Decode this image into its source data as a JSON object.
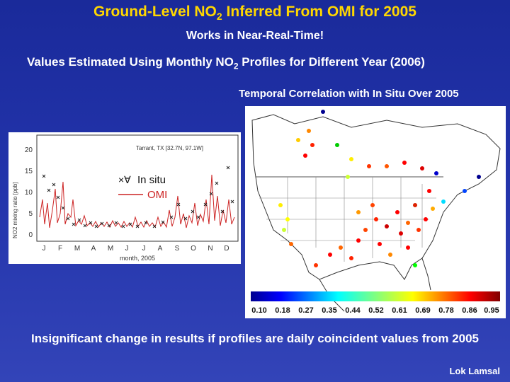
{
  "title": {
    "pre": "Ground-Level NO",
    "sub": "2",
    "post": " Inferred From OMI for 2005"
  },
  "subtitle": "Works in Near-Real-Time!",
  "note": {
    "pre": "Values Estimated Using Monthly NO",
    "sub": "2",
    "post": " Profiles for Different Year (2006)"
  },
  "map": {
    "label": "Temporal Correlation with In Situ Over 2005",
    "colorbar_ticks": [
      "0.10",
      "0.18",
      "0.27",
      "0.35",
      "0.44",
      "0.52",
      "0.61",
      "0.69",
      "0.78",
      "0.86",
      "0.95"
    ]
  },
  "timeseries": {
    "station": "Tarrant, TX [32.7N, 97.1W]",
    "ylabel": "NO2 mixing ratio [ppb]",
    "xlabel": "month, 2005",
    "yticks": [
      "0",
      "5",
      "10",
      "15",
      "20"
    ],
    "months": [
      "J",
      "F",
      "M",
      "A",
      "M",
      "J",
      "J",
      "A",
      "S",
      "O",
      "N",
      "D"
    ],
    "legend_insitu_symbol": "×∀",
    "legend_insitu": "In situ",
    "legend_omi": "OMI"
  },
  "conclusion": "Insignificant change in results if profiles are daily coincident values from 2005",
  "author": "Lok Lamsal",
  "colors": {
    "title": "#ffd700",
    "omi_line": "#cc2222",
    "background": "#2233aa"
  }
}
